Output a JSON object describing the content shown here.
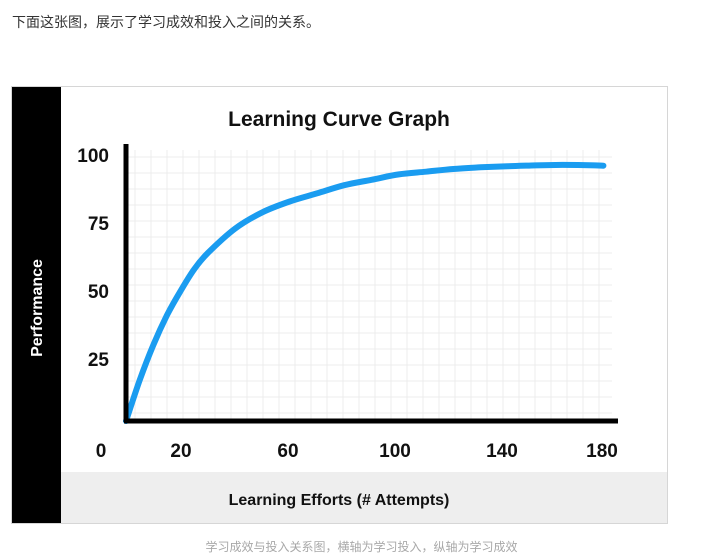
{
  "article": {
    "intro_text": "下面这张图，展示了学习成效和投入之间的关系。",
    "caption": "学习成效与投入关系图，横轴为学习投入，纵轴为学习成效"
  },
  "chart_data": {
    "type": "line",
    "title": "Learning Curve Graph",
    "xlabel": "Learning Efforts (# Attempts)",
    "ylabel": "Performance",
    "xlim": [
      0,
      180
    ],
    "ylim": [
      0,
      100
    ],
    "x_ticks": [
      "0",
      "20",
      "60",
      "100",
      "140",
      "180"
    ],
    "y_ticks": [
      "100",
      "75",
      "50",
      "25"
    ],
    "grid": true,
    "series": [
      {
        "color": "#1a9cf0",
        "x": [
          0,
          5,
          10,
          15,
          20,
          25,
          30,
          40,
          50,
          60,
          70,
          80,
          90,
          100,
          110,
          120,
          130,
          140,
          150,
          160,
          170,
          175
        ],
        "y": [
          0,
          15,
          28,
          39,
          48,
          56,
          62,
          71,
          77,
          81,
          84,
          87,
          89,
          91,
          92,
          93,
          93.6,
          94,
          94.3,
          94.5,
          94.4,
          94.2
        ]
      }
    ]
  },
  "colors": {
    "curve": "#1a9cf0",
    "axis": "#000000",
    "side_band": "#000000",
    "bottom_band": "#eeeeee"
  }
}
